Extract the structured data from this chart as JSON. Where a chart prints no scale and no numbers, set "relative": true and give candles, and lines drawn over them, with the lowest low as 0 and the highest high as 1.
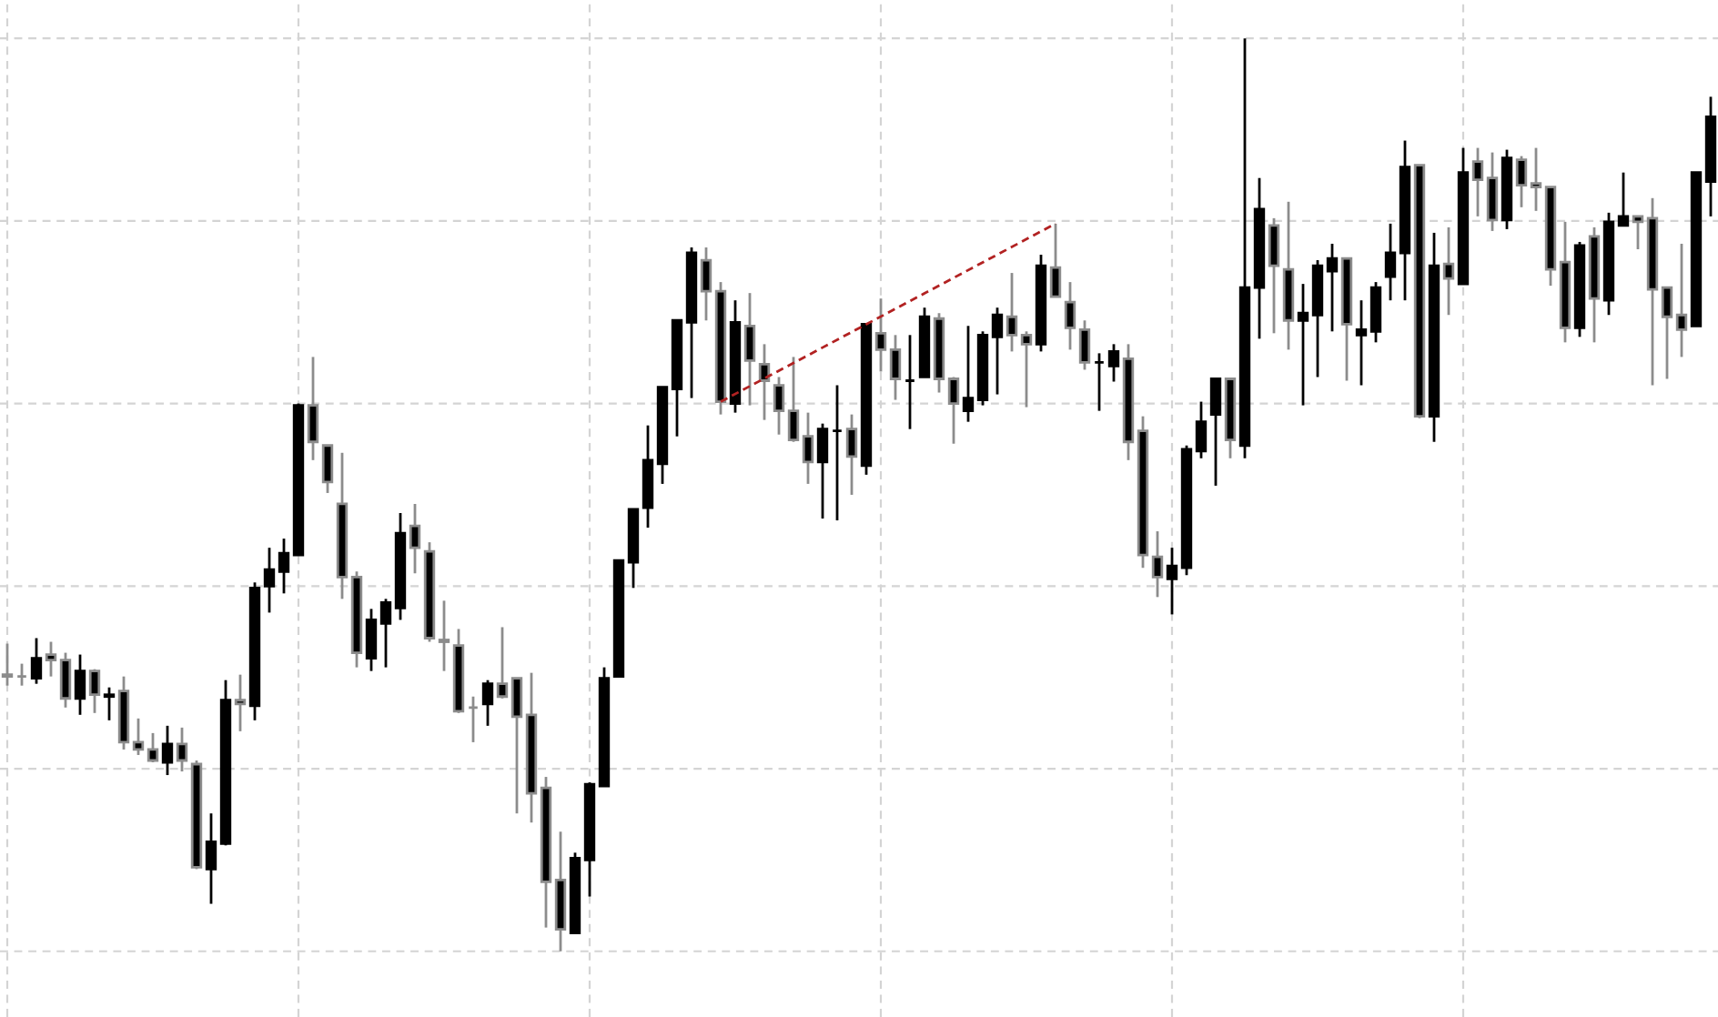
{
  "chart_data": {
    "type": "candlestick",
    "relative": true,
    "grid": true,
    "tick_labels": false,
    "categories": [
      null,
      null,
      null,
      null,
      null,
      null,
      null,
      null,
      null,
      null,
      null,
      null,
      null,
      null,
      null,
      null,
      null,
      null,
      null,
      null,
      null,
      null,
      null,
      null,
      null,
      null,
      null,
      null,
      null,
      null,
      null,
      null,
      null,
      null,
      null,
      null,
      null,
      null,
      null,
      null,
      null,
      null,
      null,
      null,
      null,
      null,
      null,
      null,
      null,
      null,
      null,
      null,
      null,
      null,
      null,
      null,
      null,
      null,
      null,
      null,
      null,
      null,
      null,
      null,
      null,
      null,
      null,
      null,
      null,
      null,
      null,
      null,
      null,
      null,
      null,
      null,
      null,
      null,
      null,
      null,
      null,
      null,
      null,
      null,
      null,
      null,
      null,
      null,
      null,
      null,
      null,
      null,
      null,
      null,
      null,
      null,
      null,
      null,
      null,
      null,
      null,
      null,
      null,
      null,
      null,
      null,
      null,
      null,
      null,
      null,
      null,
      null,
      null,
      null,
      null,
      null,
      null,
      null
    ],
    "ohlc": [
      [
        0.303,
        0.337,
        0.291,
        0.301
      ],
      [
        0.301,
        0.315,
        0.291,
        0.301
      ],
      [
        0.299,
        0.343,
        0.293,
        0.321
      ],
      [
        0.325,
        0.339,
        0.301,
        0.319
      ],
      [
        0.319,
        0.327,
        0.267,
        0.277
      ],
      [
        0.277,
        0.325,
        0.259,
        0.307
      ],
      [
        0.307,
        0.309,
        0.261,
        0.281
      ],
      [
        0.279,
        0.289,
        0.253,
        0.281
      ],
      [
        0.285,
        0.301,
        0.221,
        0.229
      ],
      [
        0.229,
        0.255,
        0.215,
        0.221
      ],
      [
        0.221,
        0.239,
        0.207,
        0.209
      ],
      [
        0.207,
        0.247,
        0.193,
        0.227
      ],
      [
        0.227,
        0.245,
        0.197,
        0.209
      ],
      [
        0.205,
        0.209,
        0.09,
        0.092
      ],
      [
        0.09,
        0.151,
        0.052,
        0.12
      ],
      [
        0.118,
        0.297,
        0.116,
        0.275
      ],
      [
        0.275,
        0.303,
        0.241,
        0.271
      ],
      [
        0.269,
        0.404,
        0.253,
        0.398
      ],
      [
        0.4,
        0.442,
        0.371,
        0.418
      ],
      [
        0.416,
        0.452,
        0.392,
        0.436
      ],
      [
        0.434,
        0.6,
        0.434,
        0.598
      ],
      [
        0.598,
        0.651,
        0.538,
        0.558
      ],
      [
        0.554,
        0.554,
        0.502,
        0.514
      ],
      [
        0.49,
        0.546,
        0.386,
        0.41
      ],
      [
        0.41,
        0.416,
        0.311,
        0.327
      ],
      [
        0.321,
        0.375,
        0.307,
        0.363
      ],
      [
        0.359,
        0.386,
        0.311,
        0.382
      ],
      [
        0.376,
        0.48,
        0.363,
        0.458
      ],
      [
        0.466,
        0.49,
        0.414,
        0.442
      ],
      [
        0.438,
        0.448,
        0.339,
        0.343
      ],
      [
        0.341,
        0.384,
        0.307,
        0.339
      ],
      [
        0.335,
        0.353,
        0.261,
        0.263
      ],
      [
        0.267,
        0.279,
        0.229,
        0.267
      ],
      [
        0.271,
        0.297,
        0.247,
        0.293
      ],
      [
        0.293,
        0.355,
        0.277,
        0.279
      ],
      [
        0.299,
        0.299,
        0.151,
        0.257
      ],
      [
        0.259,
        0.305,
        0.141,
        0.173
      ],
      [
        0.179,
        0.191,
        0.026,
        0.076
      ],
      [
        0.078,
        0.131,
        0,
        0.024
      ],
      [
        0.02,
        0.108,
        0.02,
        0.102
      ],
      [
        0.1,
        0.185,
        0.06,
        0.183
      ],
      [
        0.181,
        0.311,
        0.181,
        0.299
      ],
      [
        0.301,
        0.428,
        0.301,
        0.428
      ],
      [
        0.426,
        0.484,
        0.398,
        0.484
      ],
      [
        0.486,
        0.576,
        0.464,
        0.538
      ],
      [
        0.534,
        0.618,
        0.512,
        0.618
      ],
      [
        0.616,
        0.691,
        0.564,
        0.691
      ],
      [
        0.689,
        0.771,
        0.606,
        0.765
      ],
      [
        0.757,
        0.771,
        0.691,
        0.723
      ],
      [
        0.723,
        0.733,
        0.588,
        0.602
      ],
      [
        0.6,
        0.713,
        0.59,
        0.689
      ],
      [
        0.685,
        0.721,
        0.598,
        0.647
      ],
      [
        0.643,
        0.665,
        0.582,
        0.625
      ],
      [
        0.62,
        0.629,
        0.566,
        0.592
      ],
      [
        0.592,
        0.651,
        0.558,
        0.56
      ],
      [
        0.564,
        0.59,
        0.512,
        0.536
      ],
      [
        0.536,
        0.578,
        0.474,
        0.572
      ],
      [
        0.57,
        0.62,
        0.472,
        0.57
      ],
      [
        0.572,
        0.588,
        0.5,
        0.542
      ],
      [
        0.532,
        0.687,
        0.522,
        0.687
      ],
      [
        0.677,
        0.715,
        0.635,
        0.659
      ],
      [
        0.659,
        0.675,
        0.604,
        0.627
      ],
      [
        0.625,
        0.675,
        0.572,
        0.625
      ],
      [
        0.629,
        0.705,
        0.629,
        0.695
      ],
      [
        0.693,
        0.699,
        0.612,
        0.627
      ],
      [
        0.627,
        0.629,
        0.556,
        0.6
      ],
      [
        0.592,
        0.685,
        0.58,
        0.606
      ],
      [
        0.604,
        0.679,
        0.598,
        0.675
      ],
      [
        0.673,
        0.705,
        0.61,
        0.697
      ],
      [
        0.695,
        0.743,
        0.657,
        0.675
      ],
      [
        0.675,
        0.679,
        0.596,
        0.665
      ],
      [
        0.665,
        0.763,
        0.657,
        0.751
      ],
      [
        0.749,
        0.797,
        0.717,
        0.717
      ],
      [
        0.711,
        0.733,
        0.659,
        0.683
      ],
      [
        0.681,
        0.691,
        0.637,
        0.645
      ],
      [
        0.645,
        0.655,
        0.592,
        0.645
      ],
      [
        0.641,
        0.665,
        0.624,
        0.657
      ],
      [
        0.649,
        0.665,
        0.538,
        0.558
      ],
      [
        0.57,
        0.586,
        0.42,
        0.434
      ],
      [
        0.432,
        0.46,
        0.388,
        0.41
      ],
      [
        0.408,
        0.442,
        0.369,
        0.422
      ],
      [
        0.42,
        0.554,
        0.412,
        0.55
      ],
      [
        0.548,
        0.602,
        0.54,
        0.58
      ],
      [
        0.588,
        0.627,
        0.51,
        0.627
      ],
      [
        0.627,
        0.627,
        0.54,
        0.56
      ],
      [
        0.554,
        1,
        0.54,
        0.727
      ],
      [
        0.727,
        0.847,
        0.671,
        0.813
      ],
      [
        0.795,
        0.803,
        0.677,
        0.751
      ],
      [
        0.747,
        0.821,
        0.659,
        0.691
      ],
      [
        0.691,
        0.731,
        0.598,
        0.699
      ],
      [
        0.697,
        0.757,
        0.629,
        0.751
      ],
      [
        0.745,
        0.775,
        0.679,
        0.759
      ],
      [
        0.759,
        0.759,
        0.625,
        0.687
      ],
      [
        0.675,
        0.713,
        0.62,
        0.681
      ],
      [
        0.679,
        0.733,
        0.667,
        0.727
      ],
      [
        0.739,
        0.797,
        0.713,
        0.765
      ],
      [
        0.765,
        0.888,
        0.713,
        0.859
      ],
      [
        0.861,
        0.861,
        0.584,
        0.586
      ],
      [
        0.586,
        0.787,
        0.558,
        0.751
      ],
      [
        0.753,
        0.793,
        0.697,
        0.737
      ],
      [
        0.731,
        0.88,
        0.731,
        0.853
      ],
      [
        0.865,
        0.88,
        0.805,
        0.845
      ],
      [
        0.847,
        0.875,
        0.789,
        0.801
      ],
      [
        0.801,
        0.878,
        0.791,
        0.869
      ],
      [
        0.867,
        0.871,
        0.815,
        0.839
      ],
      [
        0.841,
        0.88,
        0.811,
        0.837
      ],
      [
        0.837,
        0.837,
        0.729,
        0.747
      ],
      [
        0.755,
        0.799,
        0.667,
        0.683
      ],
      [
        0.683,
        0.777,
        0.673,
        0.773
      ],
      [
        0.783,
        0.793,
        0.667,
        0.715
      ],
      [
        0.713,
        0.809,
        0.697,
        0.799
      ],
      [
        0.795,
        0.853,
        0.795,
        0.805
      ],
      [
        0.805,
        0.805,
        0.769,
        0.799
      ],
      [
        0.803,
        0.825,
        0.62,
        0.725
      ],
      [
        0.727,
        0.727,
        0.627,
        0.695
      ],
      [
        0.697,
        0.775,
        0.651,
        0.681
      ],
      [
        0.685,
        0.853,
        0.685,
        0.853
      ],
      [
        0.843,
        0.936,
        0.805,
        0.914
      ]
    ],
    "colors": [
      "#8c8c8c",
      "#8c8c8c",
      "#000000",
      "#8c8c8c",
      "#8c8c8c",
      "#000000",
      "#8c8c8c",
      "#000000",
      "#8c8c8c",
      "#8c8c8c",
      "#8c8c8c",
      "#000000",
      "#8c8c8c",
      "#8c8c8c",
      "#000000",
      "#000000",
      "#8c8c8c",
      "#000000",
      "#000000",
      "#000000",
      "#000000",
      "#8c8c8c",
      "#8c8c8c",
      "#8c8c8c",
      "#8c8c8c",
      "#000000",
      "#000000",
      "#000000",
      "#8c8c8c",
      "#8c8c8c",
      "#8c8c8c",
      "#8c8c8c",
      "#8c8c8c",
      "#000000",
      "#8c8c8c",
      "#8c8c8c",
      "#8c8c8c",
      "#8c8c8c",
      "#8c8c8c",
      "#000000",
      "#000000",
      "#000000",
      "#000000",
      "#000000",
      "#000000",
      "#000000",
      "#000000",
      "#000000",
      "#8c8c8c",
      "#8c8c8c",
      "#000000",
      "#8c8c8c",
      "#8c8c8c",
      "#8c8c8c",
      "#8c8c8c",
      "#8c8c8c",
      "#000000",
      "#000000",
      "#8c8c8c",
      "#000000",
      "#8c8c8c",
      "#8c8c8c",
      "#000000",
      "#000000",
      "#8c8c8c",
      "#8c8c8c",
      "#000000",
      "#000000",
      "#000000",
      "#8c8c8c",
      "#8c8c8c",
      "#000000",
      "#8c8c8c",
      "#8c8c8c",
      "#8c8c8c",
      "#000000",
      "#000000",
      "#8c8c8c",
      "#8c8c8c",
      "#8c8c8c",
      "#000000",
      "#000000",
      "#000000",
      "#000000",
      "#8c8c8c",
      "#000000",
      "#000000",
      "#8c8c8c",
      "#8c8c8c",
      "#000000",
      "#000000",
      "#000000",
      "#8c8c8c",
      "#000000",
      "#000000",
      "#000000",
      "#000000",
      "#8c8c8c",
      "#000000",
      "#8c8c8c",
      "#000000",
      "#8c8c8c",
      "#8c8c8c",
      "#000000",
      "#8c8c8c",
      "#8c8c8c",
      "#8c8c8c",
      "#8c8c8c",
      "#000000",
      "#8c8c8c",
      "#000000",
      "#000000",
      "#8c8c8c",
      "#8c8c8c",
      "#8c8c8c",
      "#8c8c8c",
      "#000000",
      "#000000"
    ],
    "series": [
      {
        "type": "line",
        "values": [
          null,
          null,
          null,
          null,
          null,
          null,
          null,
          null,
          null,
          null,
          null,
          null,
          null,
          null,
          null,
          null,
          null,
          null,
          null,
          null,
          null,
          null,
          null,
          null,
          null,
          null,
          null,
          null,
          null,
          null,
          null,
          null,
          null,
          null,
          null,
          null,
          null,
          null,
          null,
          null,
          null,
          null,
          null,
          null,
          null,
          null,
          null,
          null,
          null,
          0.602,
          null,
          null,
          null,
          null,
          null,
          null,
          null,
          null,
          null,
          null,
          null,
          null,
          null,
          null,
          null,
          null,
          null,
          null,
          null,
          null,
          null,
          null,
          0.797,
          null,
          null,
          null,
          null,
          null,
          null,
          null,
          null,
          null,
          null,
          null,
          null,
          null,
          null,
          null,
          null,
          null,
          null,
          null,
          null,
          null,
          null,
          null,
          null,
          null,
          null,
          null,
          null,
          null,
          null,
          null,
          null,
          null,
          null,
          null,
          null,
          null,
          null,
          null,
          null,
          null,
          null,
          null,
          null,
          null
        ],
        "color": "#b22222",
        "line_style": "dashed"
      }
    ]
  }
}
